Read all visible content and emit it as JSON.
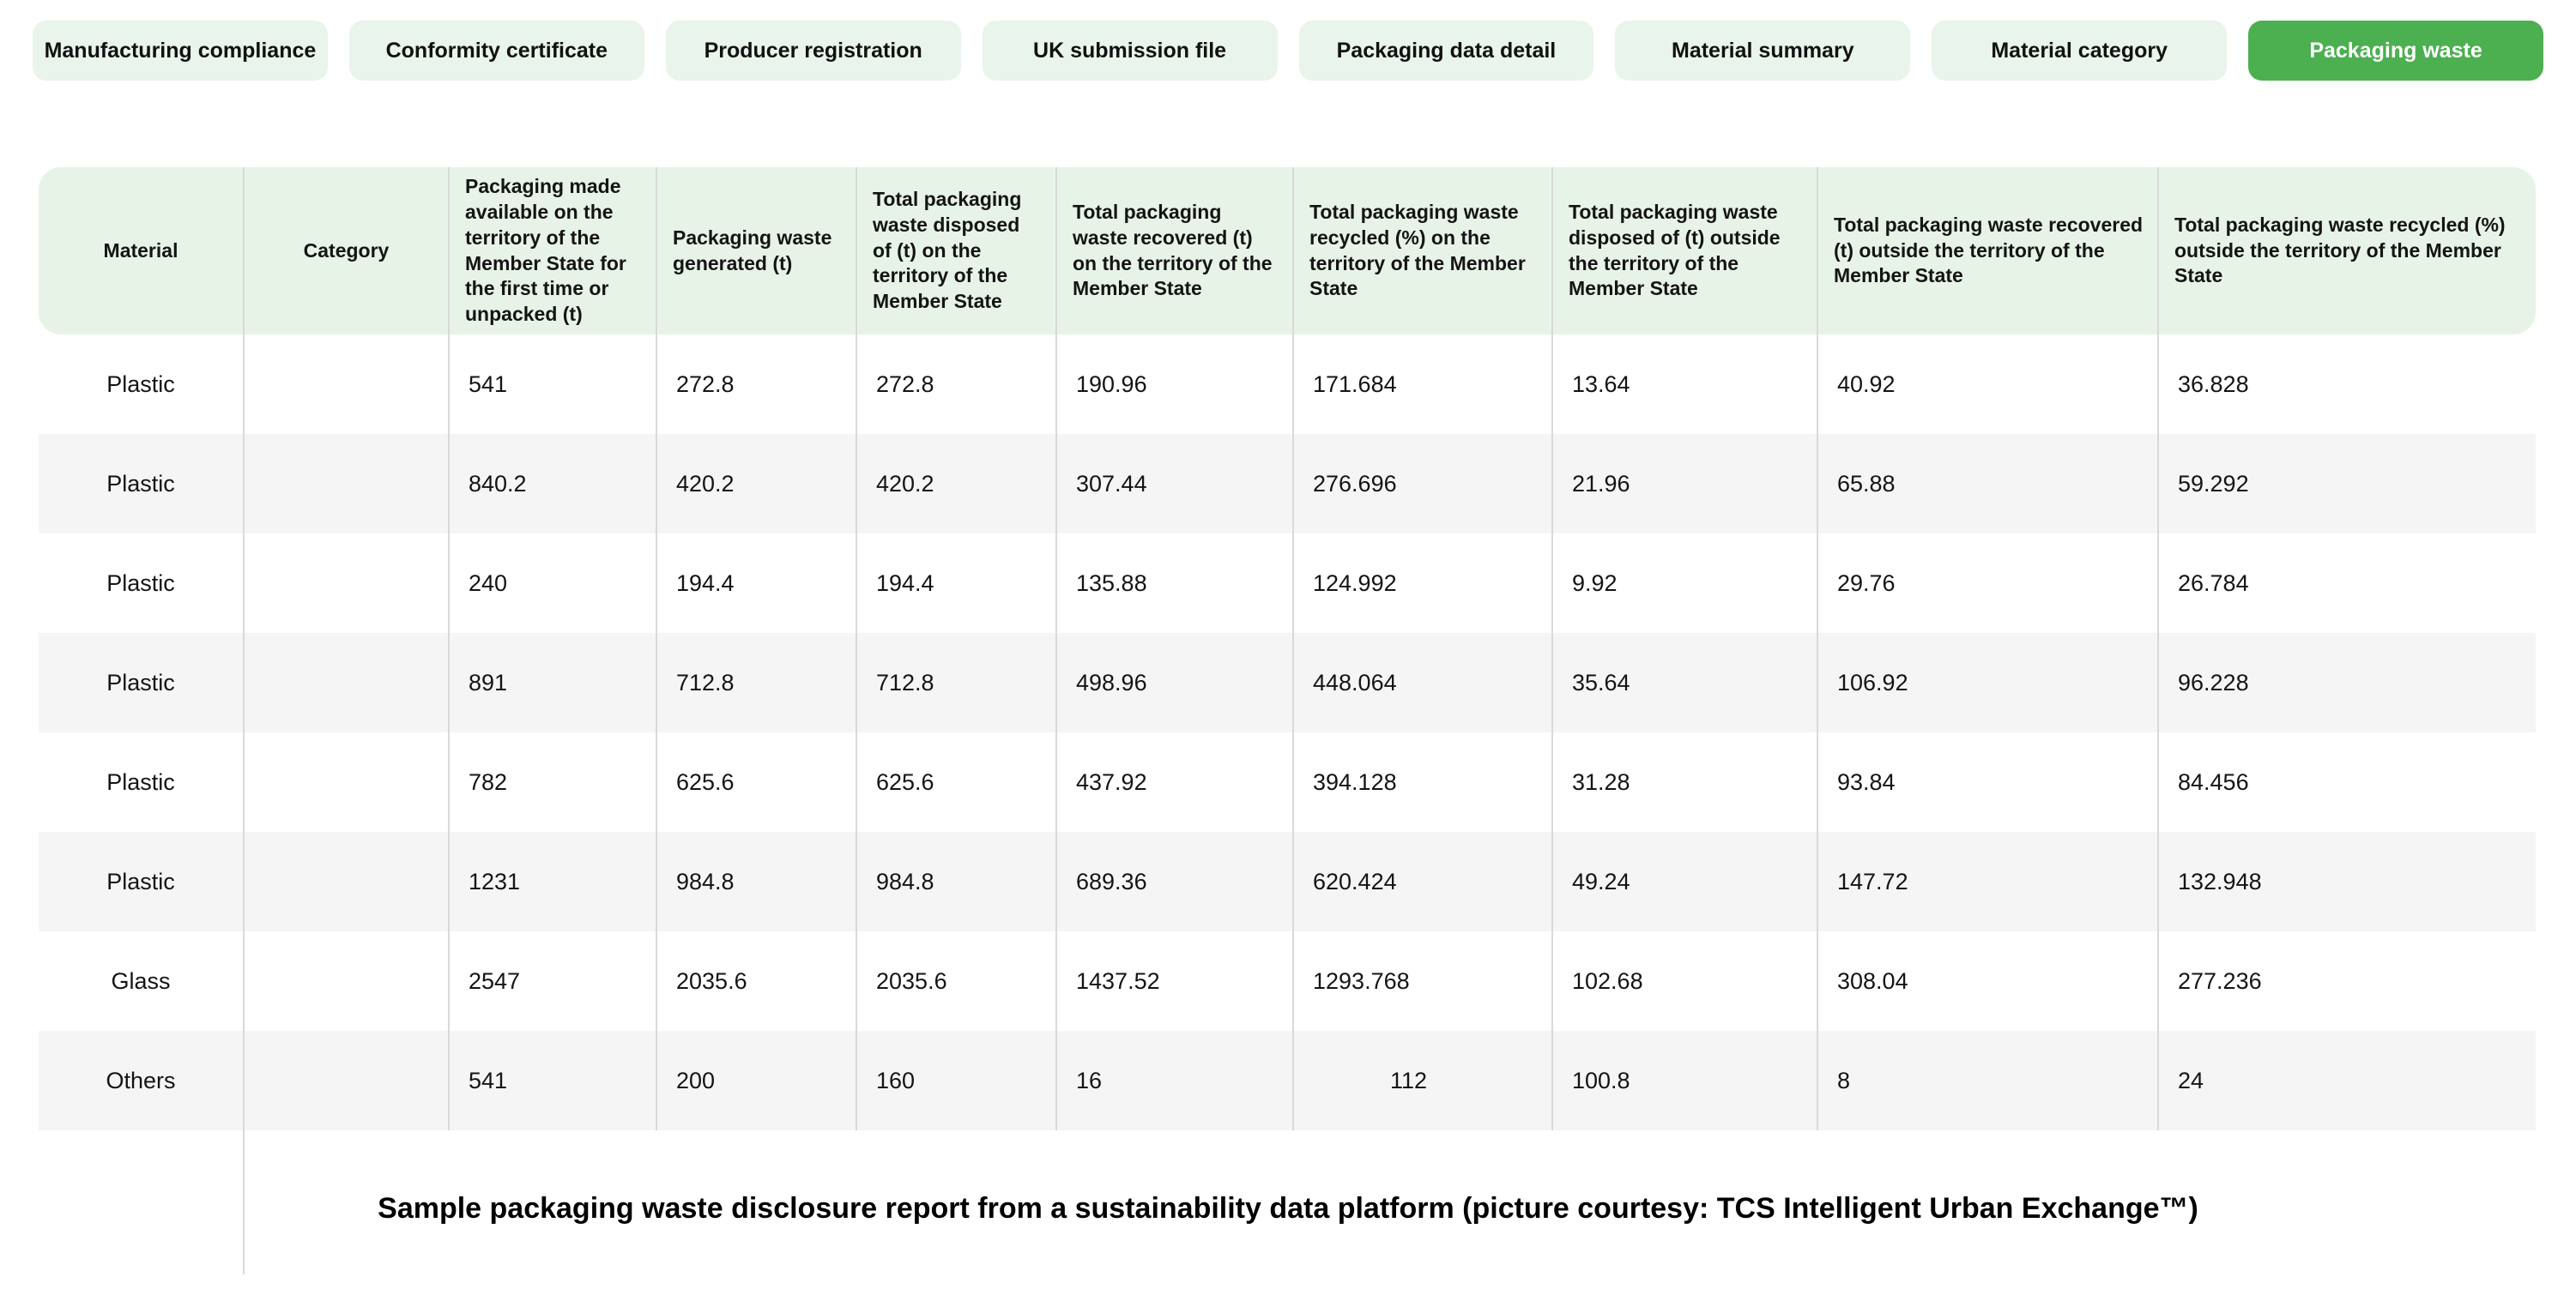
{
  "tabs": [
    {
      "label": "Manufacturing compliance",
      "active": false
    },
    {
      "label": "Conformity certificate",
      "active": false
    },
    {
      "label": "Producer registration",
      "active": false
    },
    {
      "label": "UK submission file",
      "active": false
    },
    {
      "label": "Packaging data detail",
      "active": false
    },
    {
      "label": "Material summary",
      "active": false
    },
    {
      "label": "Material category",
      "active": false
    },
    {
      "label": "Packaging waste",
      "active": true
    }
  ],
  "table": {
    "columns": [
      "Material",
      "Category",
      "Packaging made available on the territory of the Member State for the first time or unpacked (t)",
      "Packaging waste generated (t)",
      "Total packaging waste disposed of (t) on the territory of the Member State",
      "Total packaging waste recovered (t) on the territory of the Member State",
      "Total packaging waste recycled (%) on the territory of the Member State",
      "Total packaging waste disposed of (t) outside the territory of the Member State",
      "Total packaging waste recovered (t) outside the territory of the Member State",
      "Total packaging waste recycled (%) outside the territory of the Member State"
    ],
    "rows": [
      [
        "Plastic",
        "",
        "541",
        "272.8",
        "272.8",
        "190.96",
        "171.684",
        "13.64",
        "40.92",
        "36.828"
      ],
      [
        "Plastic",
        "",
        "840.2",
        "420.2",
        "420.2",
        "307.44",
        "276.696",
        "21.96",
        "65.88",
        "59.292"
      ],
      [
        "Plastic",
        "",
        "240",
        "194.4",
        "194.4",
        "135.88",
        "124.992",
        "9.92",
        "29.76",
        "26.784"
      ],
      [
        "Plastic",
        "",
        "891",
        "712.8",
        "712.8",
        "498.96",
        "448.064",
        "35.64",
        "106.92",
        "96.228"
      ],
      [
        "Plastic",
        "",
        "782",
        "625.6",
        "625.6",
        "437.92",
        "394.128",
        "31.28",
        "93.84",
        "84.456"
      ],
      [
        "Plastic",
        "",
        "1231",
        "984.8",
        "984.8",
        "689.36",
        "620.424",
        "49.24",
        "147.72",
        "132.948"
      ],
      [
        "Glass",
        "",
        "2547",
        "2035.6",
        "2035.6",
        "1437.52",
        "1293.768",
        "102.68",
        "308.04",
        "277.236"
      ],
      [
        "Others",
        "",
        "541",
        "200",
        "160",
        "16",
        "112",
        "100.8",
        "8",
        "24"
      ]
    ]
  },
  "caption": "Sample packaging waste disclosure report from a sustainability data platform (picture courtesy: TCS Intelligent Urban Exchange™)",
  "colors": {
    "accent_green": "#4CAF50",
    "tab_bg": "#E9F4EA",
    "header_bg": "#E8F3E8",
    "row_alt_bg": "#F5F5F5",
    "divider": "#D9D9D9",
    "active_tab_text": "#FFFFFF",
    "text": "#141414"
  }
}
